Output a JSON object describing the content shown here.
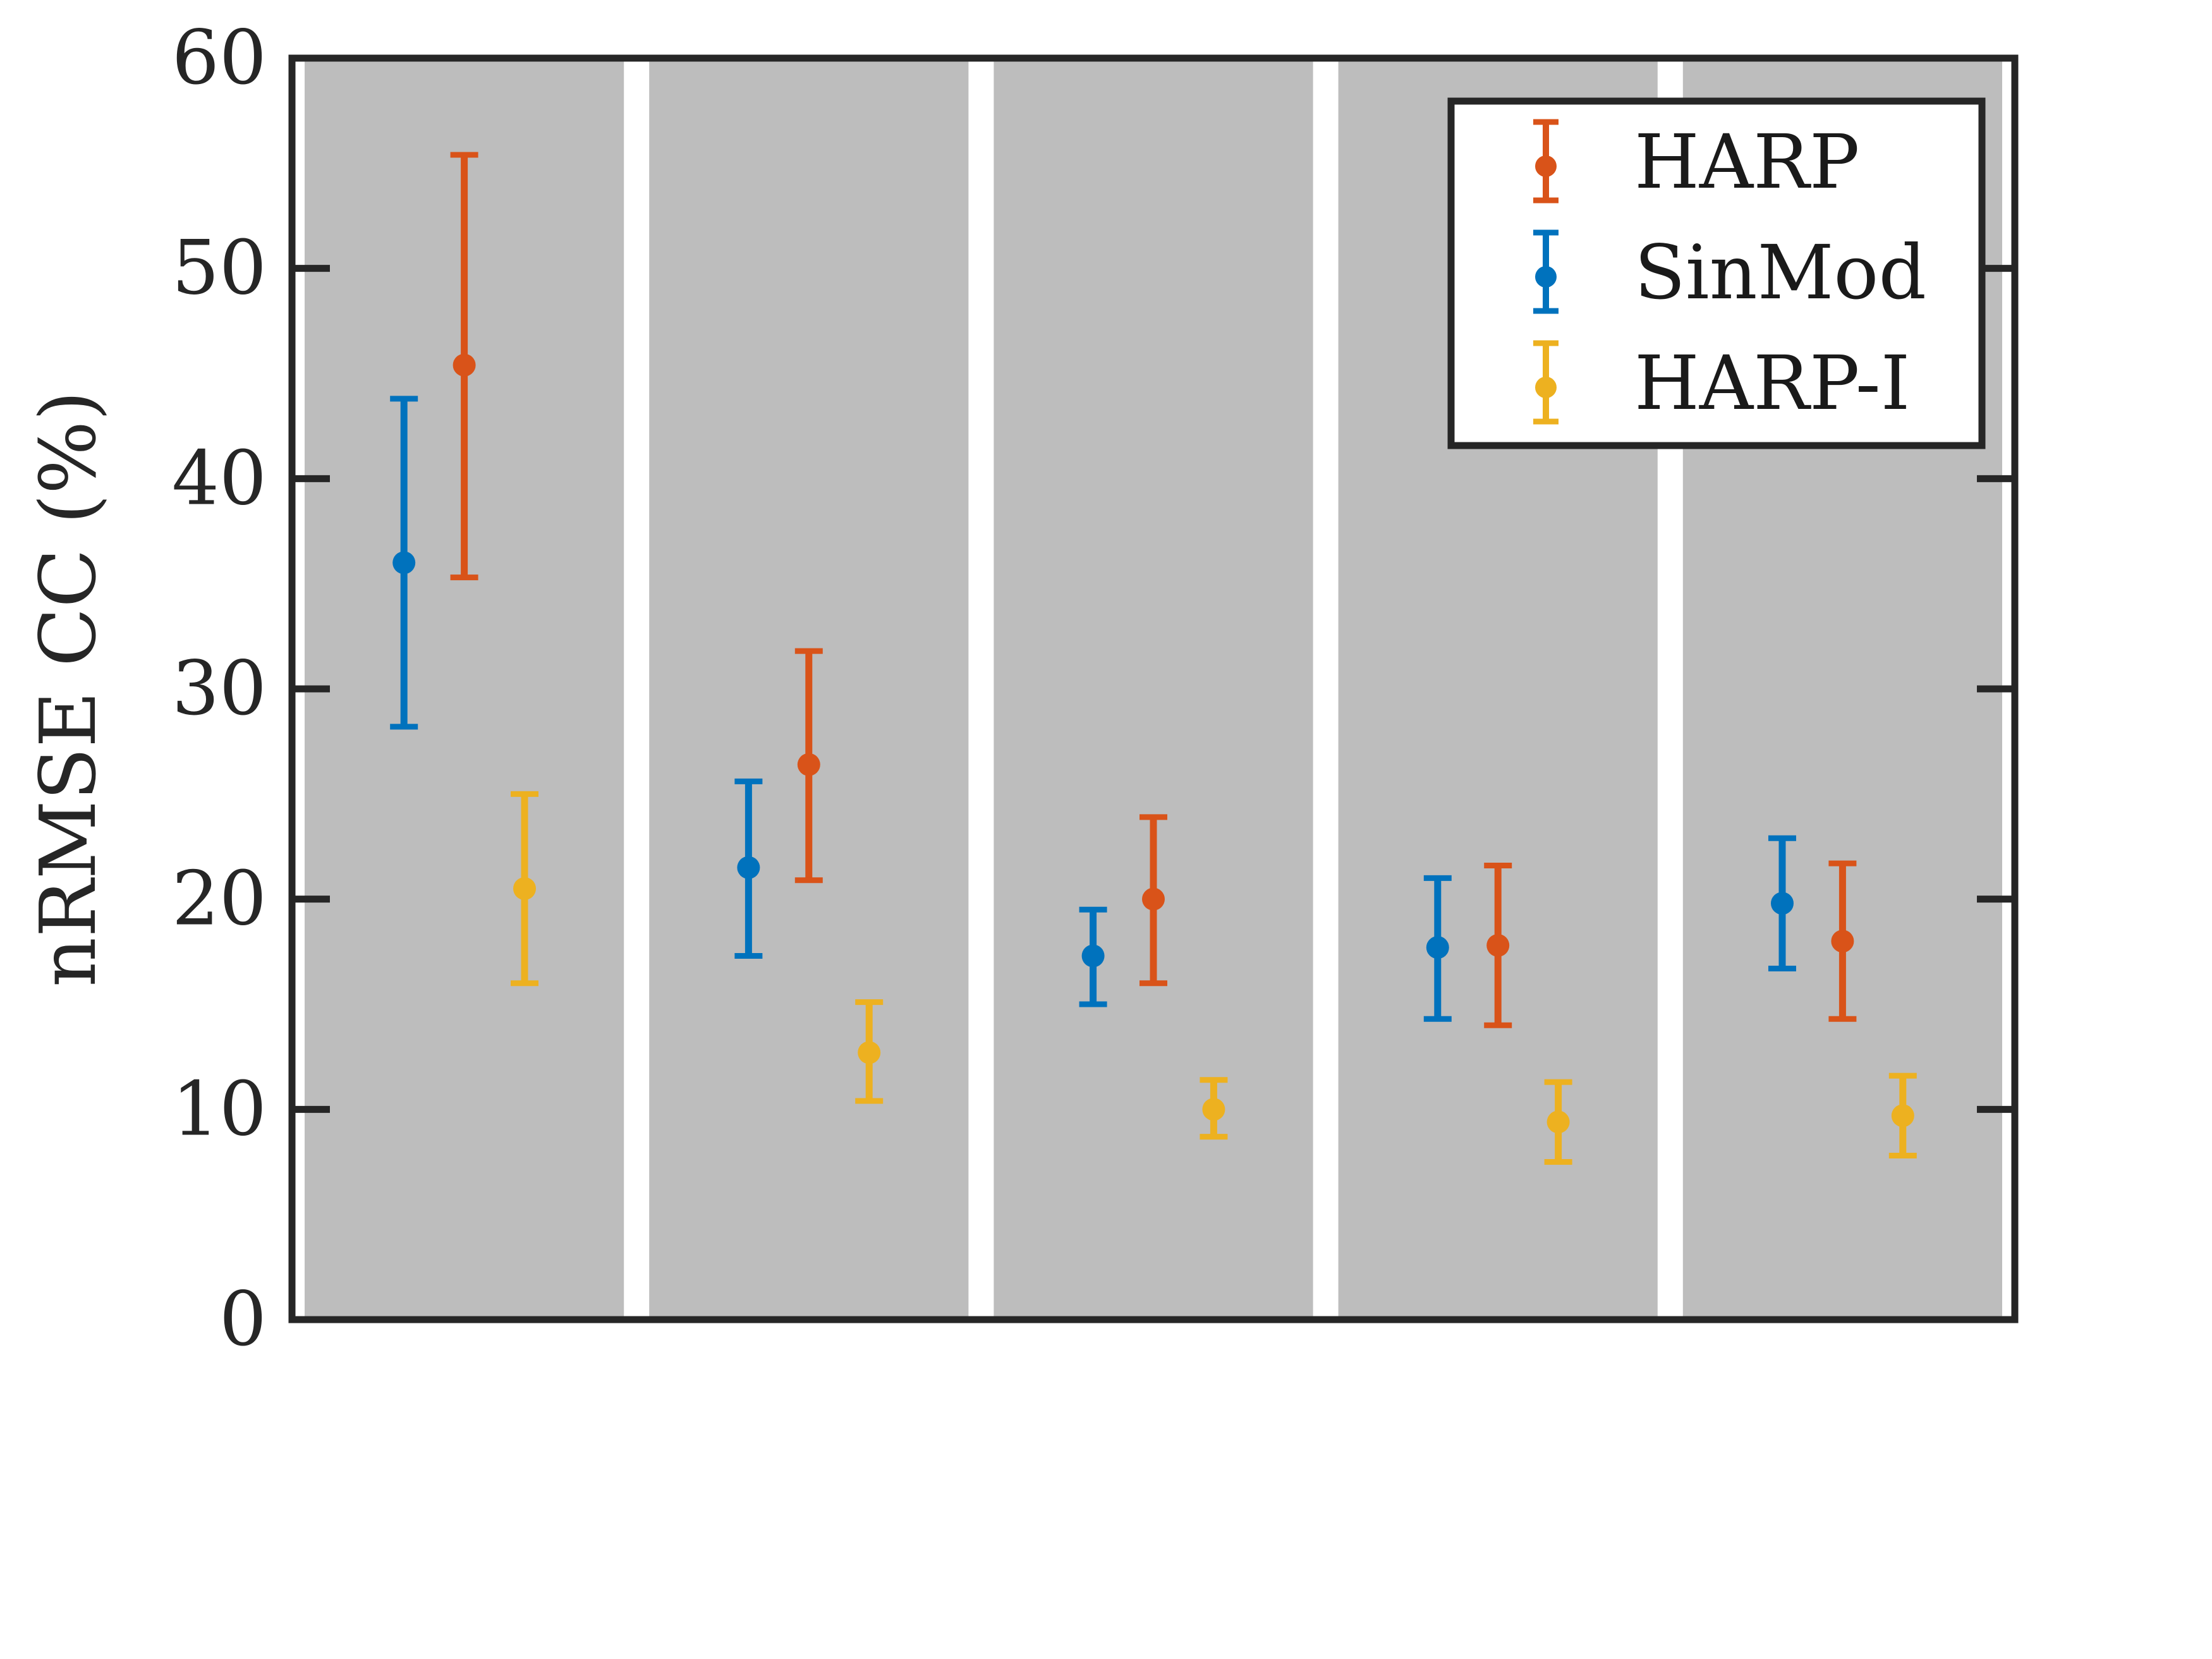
{
  "chart_data": {
    "type": "scatter",
    "subtype": "errorbar",
    "title": "",
    "xlabel": "",
    "ylabel": "nRMSE CC (%)",
    "ylim": [
      0,
      60
    ],
    "yticks": [
      0,
      10,
      20,
      30,
      40,
      50,
      60
    ],
    "categories": [
      "",
      "",
      "",
      "",
      ""
    ],
    "grid": false,
    "legend_position": "top-right",
    "background": "gray shaded bands",
    "series": [
      {
        "name": "HARP",
        "color": "#D95319",
        "values": [
          45.4,
          26.4,
          20.0,
          17.8,
          18.0
        ],
        "lower": [
          35.3,
          20.9,
          16.0,
          14.0,
          14.3
        ],
        "upper": [
          55.4,
          31.8,
          23.9,
          21.6,
          21.7
        ]
      },
      {
        "name": "SinMod",
        "color": "#0072BD",
        "values": [
          36.0,
          21.5,
          17.3,
          17.7,
          19.8
        ],
        "lower": [
          28.2,
          17.3,
          15.0,
          14.3,
          16.7
        ],
        "upper": [
          43.8,
          25.6,
          19.5,
          21.0,
          22.9
        ]
      },
      {
        "name": "HARP-I",
        "color": "#EDB120",
        "values": [
          20.5,
          12.7,
          10.0,
          9.4,
          9.7
        ],
        "lower": [
          16.0,
          10.4,
          8.7,
          7.5,
          7.8
        ],
        "upper": [
          25.0,
          15.1,
          11.4,
          11.3,
          11.6
        ]
      }
    ]
  }
}
